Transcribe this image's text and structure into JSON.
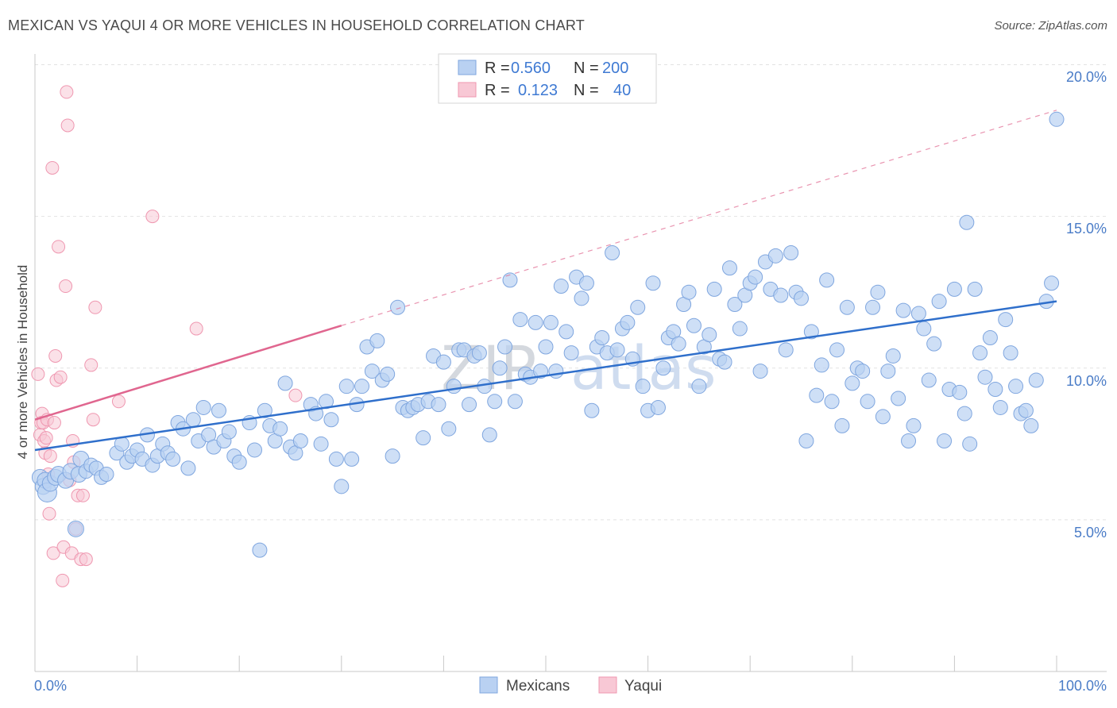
{
  "header": {
    "title": "MEXICAN VS YAQUI 4 OR MORE VEHICLES IN HOUSEHOLD CORRELATION CHART",
    "source": "Source: ZipAtlas.com"
  },
  "watermark": {
    "part1": "ZIP",
    "part2": "atlas"
  },
  "colors": {
    "mexicans_fill": "#b9d1f2",
    "mexicans_stroke": "#7fa6df",
    "mexicans_line": "#2f6fcb",
    "yaqui_fill": "#f8c8d5",
    "yaqui_stroke": "#ef97b0",
    "yaqui_line": "#e0668f",
    "tick_text": "#4a7cc7",
    "grid": "#e2e2e2"
  },
  "legend": {
    "rows": [
      {
        "r_label": "R =",
        "r_value": "0.560",
        "n_label": "N =",
        "n_value": "200"
      },
      {
        "r_label": "R =",
        "r_value": "0.123",
        "n_label": "N =",
        "n_value": "40"
      }
    ]
  },
  "bottom_legend": {
    "items": [
      "Mexicans",
      "Yaqui"
    ]
  },
  "chart_data": {
    "type": "scatter",
    "title": "MEXICAN VS YAQUI 4 OR MORE VEHICLES IN HOUSEHOLD CORRELATION CHART",
    "xlabel": "",
    "ylabel": "4 or more Vehicles in Household",
    "x_tick_labels": [
      "0.0%",
      "100.0%"
    ],
    "y_tick_labels": [
      "5.0%",
      "10.0%",
      "15.0%",
      "20.0%"
    ],
    "y_ticks": [
      5,
      10,
      15,
      20
    ],
    "xlim": [
      0,
      100
    ],
    "ylim": [
      0,
      21
    ],
    "grid": "horizontal dashed",
    "legend_position": "top-center",
    "series": [
      {
        "name": "Mexicans",
        "r": 0.56,
        "n": 200,
        "trend": {
          "x": [
            0,
            100
          ],
          "y": [
            7.3,
            12.2
          ],
          "style": "solid"
        },
        "points": [
          [
            0.5,
            6.4
          ],
          [
            0.8,
            6.1
          ],
          [
            1.0,
            6.3
          ],
          [
            1.2,
            5.9
          ],
          [
            1.5,
            6.2
          ],
          [
            2.0,
            6.4
          ],
          [
            2.3,
            6.5
          ],
          [
            3.0,
            6.3
          ],
          [
            3.5,
            6.6
          ],
          [
            4.0,
            4.7
          ],
          [
            4.3,
            6.5
          ],
          [
            4.5,
            7.0
          ],
          [
            5.0,
            6.6
          ],
          [
            5.5,
            6.8
          ],
          [
            6.0,
            6.7
          ],
          [
            6.5,
            6.4
          ],
          [
            7.0,
            6.5
          ],
          [
            8.0,
            7.2
          ],
          [
            8.5,
            7.5
          ],
          [
            9.0,
            6.9
          ],
          [
            9.5,
            7.1
          ],
          [
            10.0,
            7.3
          ],
          [
            10.5,
            7.0
          ],
          [
            11.0,
            7.8
          ],
          [
            11.5,
            6.8
          ],
          [
            12.0,
            7.1
          ],
          [
            12.5,
            7.5
          ],
          [
            13.0,
            7.2
          ],
          [
            13.5,
            7.0
          ],
          [
            14.0,
            8.2
          ],
          [
            14.5,
            8.0
          ],
          [
            15.0,
            6.7
          ],
          [
            15.5,
            8.3
          ],
          [
            16.0,
            7.6
          ],
          [
            16.5,
            8.7
          ],
          [
            17.0,
            7.8
          ],
          [
            17.5,
            7.4
          ],
          [
            18.0,
            8.6
          ],
          [
            18.5,
            7.6
          ],
          [
            19.0,
            7.9
          ],
          [
            19.5,
            7.1
          ],
          [
            20.0,
            6.9
          ],
          [
            21.0,
            8.2
          ],
          [
            21.5,
            7.3
          ],
          [
            22.0,
            4.0
          ],
          [
            22.5,
            8.6
          ],
          [
            23.0,
            8.1
          ],
          [
            23.5,
            7.6
          ],
          [
            24.0,
            8.0
          ],
          [
            24.5,
            9.5
          ],
          [
            25.0,
            7.4
          ],
          [
            25.5,
            7.2
          ],
          [
            26.0,
            7.6
          ],
          [
            27.0,
            8.8
          ],
          [
            27.5,
            8.5
          ],
          [
            28.0,
            7.5
          ],
          [
            28.5,
            8.9
          ],
          [
            29.0,
            8.3
          ],
          [
            29.5,
            7.0
          ],
          [
            30.0,
            6.1
          ],
          [
            30.5,
            9.4
          ],
          [
            31.0,
            7.0
          ],
          [
            31.5,
            8.8
          ],
          [
            32.0,
            9.4
          ],
          [
            32.5,
            10.7
          ],
          [
            33.0,
            9.9
          ],
          [
            33.5,
            10.9
          ],
          [
            34.0,
            9.6
          ],
          [
            34.5,
            9.8
          ],
          [
            35.0,
            7.1
          ],
          [
            35.5,
            12.0
          ],
          [
            36.0,
            8.7
          ],
          [
            36.5,
            8.6
          ],
          [
            37.0,
            8.7
          ],
          [
            37.5,
            8.8
          ],
          [
            38.0,
            7.7
          ],
          [
            38.5,
            8.9
          ],
          [
            39.0,
            10.4
          ],
          [
            39.5,
            8.8
          ],
          [
            40.0,
            10.2
          ],
          [
            40.5,
            8.0
          ],
          [
            41.0,
            9.4
          ],
          [
            41.5,
            10.6
          ],
          [
            42.0,
            10.6
          ],
          [
            42.5,
            8.8
          ],
          [
            43.0,
            10.4
          ],
          [
            43.5,
            10.5
          ],
          [
            44.0,
            9.4
          ],
          [
            44.5,
            7.8
          ],
          [
            45.0,
            8.9
          ],
          [
            45.5,
            10.0
          ],
          [
            46.0,
            10.7
          ],
          [
            46.5,
            12.9
          ],
          [
            47.0,
            8.9
          ],
          [
            47.5,
            11.6
          ],
          [
            48.0,
            9.8
          ],
          [
            48.5,
            9.7
          ],
          [
            49.0,
            11.5
          ],
          [
            49.5,
            9.9
          ],
          [
            50.0,
            10.7
          ],
          [
            50.5,
            11.5
          ],
          [
            51.0,
            9.9
          ],
          [
            51.5,
            12.7
          ],
          [
            52.0,
            11.2
          ],
          [
            52.5,
            10.5
          ],
          [
            53.0,
            13.0
          ],
          [
            53.5,
            12.3
          ],
          [
            54.0,
            12.8
          ],
          [
            54.5,
            8.6
          ],
          [
            55.0,
            10.7
          ],
          [
            55.5,
            11.0
          ],
          [
            56.0,
            10.5
          ],
          [
            56.5,
            13.8
          ],
          [
            57.0,
            10.6
          ],
          [
            57.5,
            11.3
          ],
          [
            58.0,
            11.5
          ],
          [
            58.5,
            10.3
          ],
          [
            59.0,
            12.0
          ],
          [
            59.5,
            9.4
          ],
          [
            60.0,
            8.6
          ],
          [
            60.5,
            12.8
          ],
          [
            61.0,
            8.7
          ],
          [
            61.5,
            10.0
          ],
          [
            62.0,
            11.0
          ],
          [
            62.5,
            11.2
          ],
          [
            63.0,
            10.8
          ],
          [
            63.5,
            12.1
          ],
          [
            64.0,
            12.5
          ],
          [
            64.5,
            11.4
          ],
          [
            65.0,
            9.4
          ],
          [
            65.5,
            10.7
          ],
          [
            66.0,
            11.1
          ],
          [
            66.5,
            12.6
          ],
          [
            67.0,
            10.3
          ],
          [
            67.5,
            10.2
          ],
          [
            68.0,
            13.3
          ],
          [
            68.5,
            12.1
          ],
          [
            69.0,
            11.3
          ],
          [
            69.5,
            12.4
          ],
          [
            70.0,
            12.8
          ],
          [
            70.5,
            13.0
          ],
          [
            71.0,
            9.9
          ],
          [
            71.5,
            13.5
          ],
          [
            72.0,
            12.6
          ],
          [
            72.5,
            13.7
          ],
          [
            73.0,
            12.4
          ],
          [
            73.5,
            10.6
          ],
          [
            74.0,
            13.8
          ],
          [
            74.5,
            12.5
          ],
          [
            75.0,
            12.3
          ],
          [
            75.5,
            7.6
          ],
          [
            76.0,
            11.2
          ],
          [
            76.5,
            9.1
          ],
          [
            77.0,
            10.1
          ],
          [
            77.5,
            12.9
          ],
          [
            78.0,
            8.9
          ],
          [
            78.5,
            10.6
          ],
          [
            79.0,
            8.1
          ],
          [
            79.5,
            12.0
          ],
          [
            80.0,
            9.5
          ],
          [
            80.5,
            10.0
          ],
          [
            81.0,
            9.9
          ],
          [
            81.5,
            8.9
          ],
          [
            82.0,
            12.0
          ],
          [
            82.5,
            12.5
          ],
          [
            83.0,
            8.4
          ],
          [
            83.5,
            9.9
          ],
          [
            84.0,
            10.4
          ],
          [
            84.5,
            9.0
          ],
          [
            85.0,
            11.9
          ],
          [
            85.5,
            7.6
          ],
          [
            86.0,
            8.1
          ],
          [
            86.5,
            11.8
          ],
          [
            87.0,
            11.3
          ],
          [
            87.5,
            9.6
          ],
          [
            88.0,
            10.8
          ],
          [
            88.5,
            12.2
          ],
          [
            89.0,
            7.6
          ],
          [
            89.5,
            9.3
          ],
          [
            90.0,
            12.6
          ],
          [
            90.5,
            9.2
          ],
          [
            91.0,
            8.5
          ],
          [
            91.5,
            7.5
          ],
          [
            92.0,
            12.6
          ],
          [
            92.5,
            10.5
          ],
          [
            93.0,
            9.7
          ],
          [
            93.5,
            11.0
          ],
          [
            94.0,
            9.3
          ],
          [
            94.5,
            8.7
          ],
          [
            95.0,
            11.6
          ],
          [
            95.5,
            10.5
          ],
          [
            96.0,
            9.4
          ],
          [
            96.5,
            8.5
          ],
          [
            97.0,
            8.6
          ],
          [
            97.5,
            8.1
          ],
          [
            98.0,
            9.6
          ],
          [
            99.0,
            12.2
          ],
          [
            99.5,
            12.8
          ],
          [
            100.0,
            18.2
          ],
          [
            91.2,
            14.8
          ]
        ]
      },
      {
        "name": "Yaqui",
        "r": 0.123,
        "n": 40,
        "trend": {
          "x": [
            0,
            30
          ],
          "y": [
            8.3,
            11.4
          ],
          "style": "solid",
          "extension": {
            "x": [
              30,
              100
            ],
            "y": [
              11.4,
              18.5
            ],
            "style": "dashed"
          }
        },
        "points": [
          [
            0.3,
            9.8
          ],
          [
            0.5,
            7.8
          ],
          [
            0.6,
            8.2
          ],
          [
            0.7,
            8.5
          ],
          [
            0.8,
            8.2
          ],
          [
            0.9,
            7.6
          ],
          [
            1.0,
            7.2
          ],
          [
            1.1,
            7.7
          ],
          [
            1.2,
            8.3
          ],
          [
            1.3,
            6.5
          ],
          [
            1.4,
            5.2
          ],
          [
            1.5,
            7.1
          ],
          [
            1.7,
            16.6
          ],
          [
            1.8,
            3.9
          ],
          [
            2.0,
            10.4
          ],
          [
            2.1,
            9.6
          ],
          [
            2.3,
            14.0
          ],
          [
            2.5,
            9.7
          ],
          [
            2.7,
            3.0
          ],
          [
            2.8,
            4.1
          ],
          [
            3.0,
            12.7
          ],
          [
            3.1,
            19.1
          ],
          [
            3.2,
            18.0
          ],
          [
            3.4,
            6.3
          ],
          [
            3.6,
            3.9
          ],
          [
            3.7,
            7.6
          ],
          [
            3.8,
            6.9
          ],
          [
            4.0,
            4.7
          ],
          [
            4.2,
            5.8
          ],
          [
            4.5,
            3.7
          ],
          [
            4.7,
            5.8
          ],
          [
            5.0,
            3.7
          ],
          [
            5.5,
            10.1
          ],
          [
            5.7,
            8.3
          ],
          [
            5.9,
            12.0
          ],
          [
            8.2,
            8.9
          ],
          [
            11.5,
            15.0
          ],
          [
            15.8,
            11.3
          ],
          [
            25.5,
            9.1
          ],
          [
            1.9,
            8.2
          ]
        ]
      }
    ]
  }
}
